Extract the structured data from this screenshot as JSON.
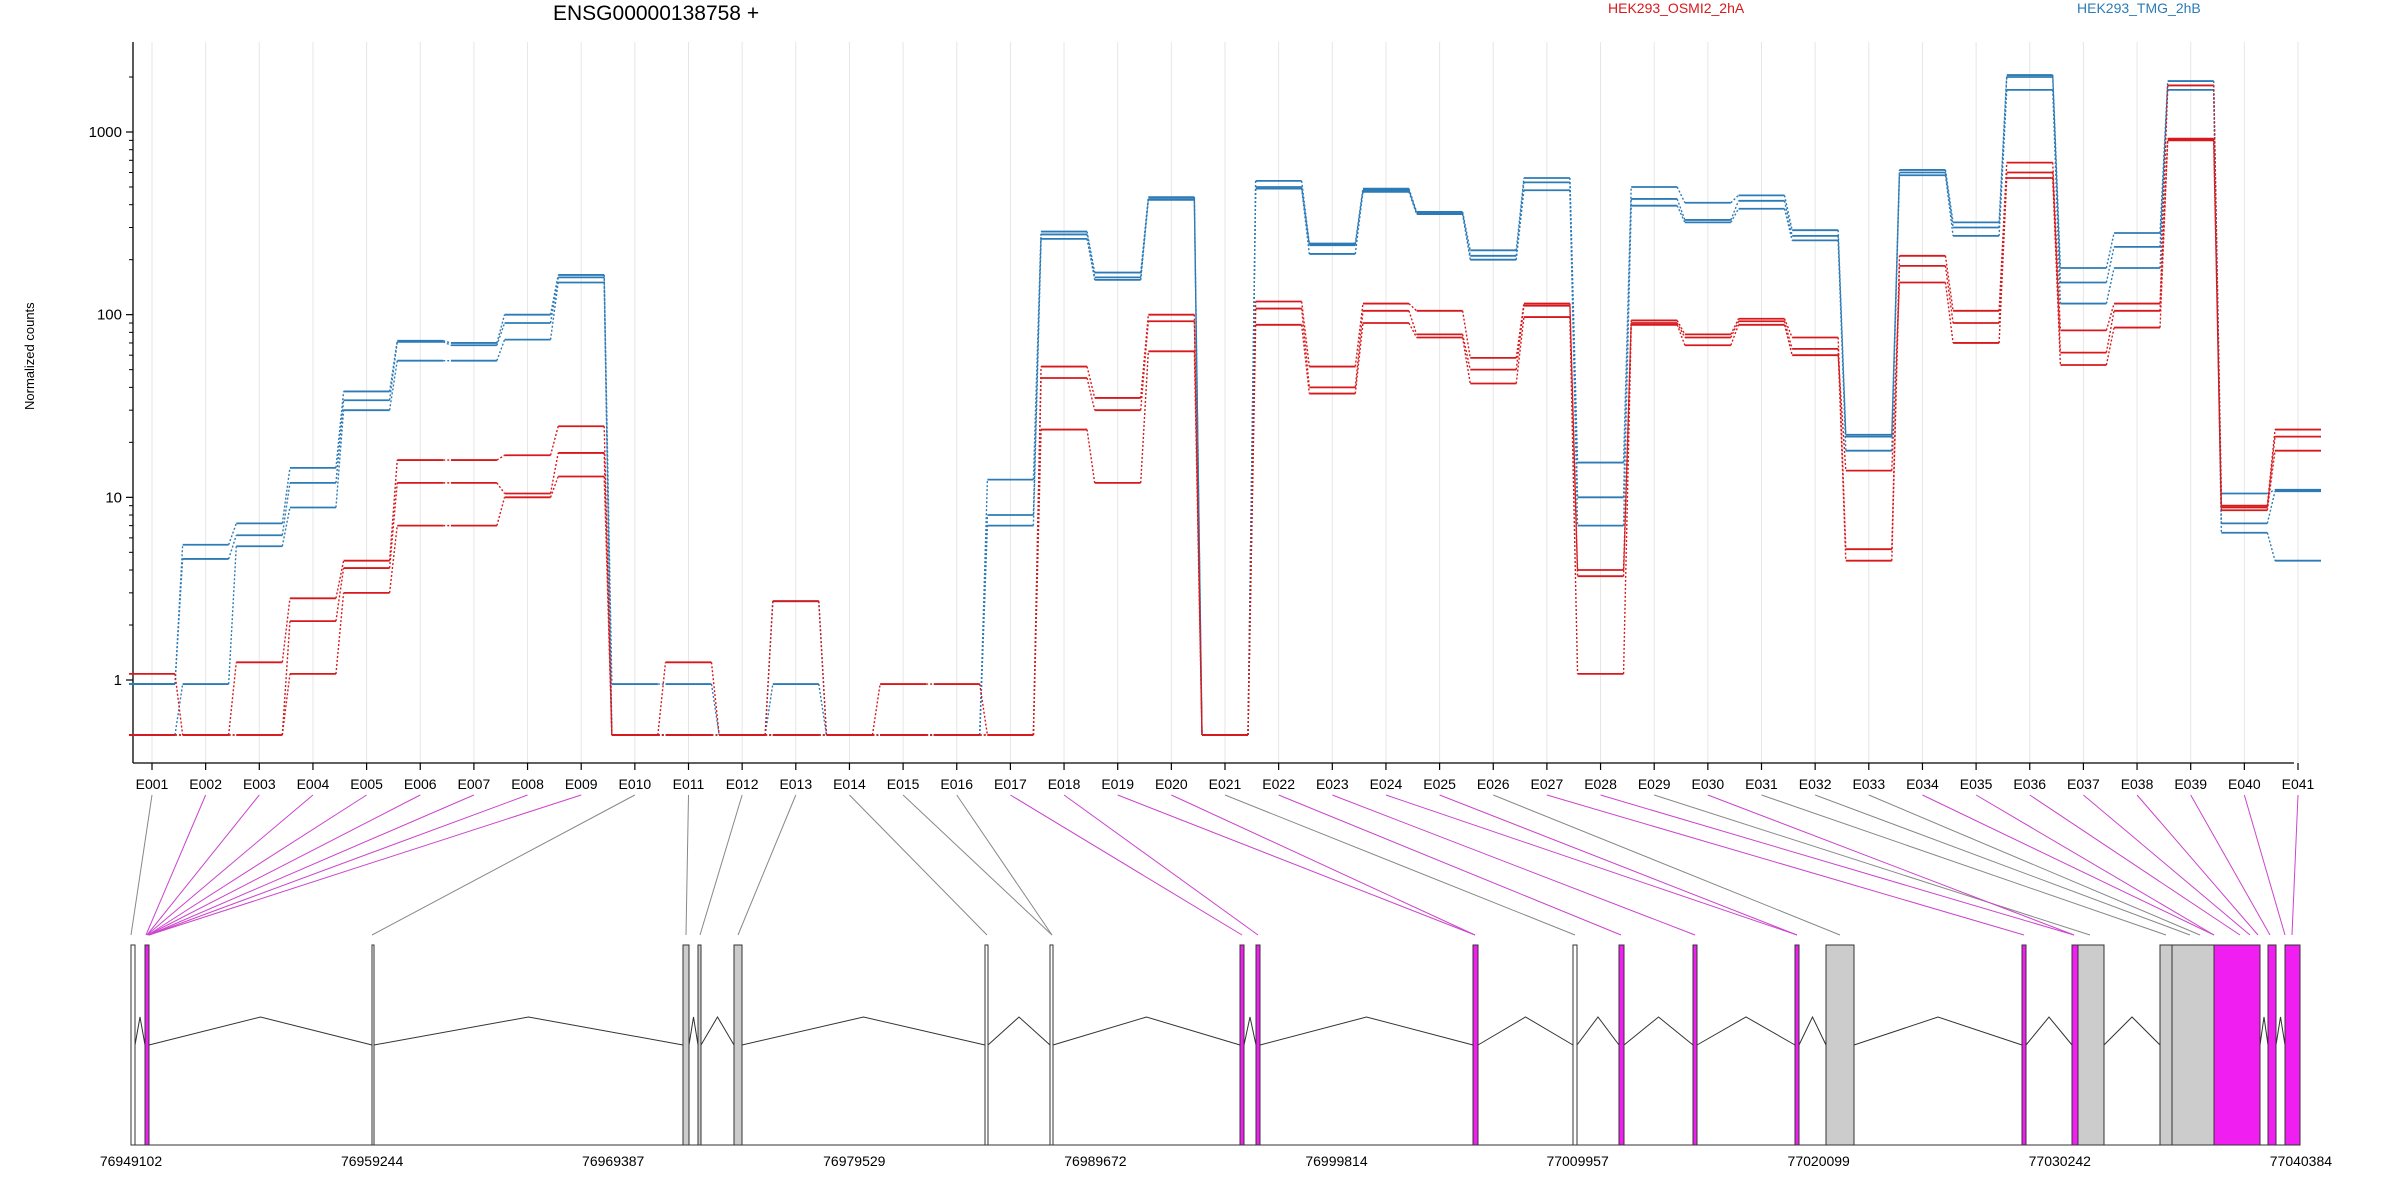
{
  "chart_data": {
    "type": "line",
    "title": "ENSG00000138758 +",
    "ylabel": "Normalized counts",
    "y_scale": "log",
    "ylim": [
      0.5,
      2500
    ],
    "y_ticks": [
      {
        "value": 1,
        "label": "1"
      },
      {
        "value": 10,
        "label": "10"
      },
      {
        "value": 100,
        "label": "100"
      },
      {
        "value": 1000,
        "label": "1000"
      }
    ],
    "categories": [
      "E001",
      "E002",
      "E003",
      "E004",
      "E005",
      "E006",
      "E007",
      "E008",
      "E009",
      "E010",
      "E011",
      "E012",
      "E013",
      "E014",
      "E015",
      "E016",
      "E017",
      "E018",
      "E019",
      "E020",
      "E021",
      "E022",
      "E023",
      "E024",
      "E025",
      "E026",
      "E027",
      "E028",
      "E029",
      "E030",
      "E031",
      "E032",
      "E033",
      "E034",
      "E035",
      "E036",
      "E037",
      "E038",
      "E039",
      "E040",
      "E041"
    ],
    "legend": [
      {
        "name": "HEK293_OSMI2_2hA",
        "color": "#d7191c"
      },
      {
        "name": "HEK293_TMG_2hB",
        "color": "#2c7bb6"
      }
    ],
    "legend_placement": "top-right",
    "series": [
      {
        "group": "HEK293_TMG_2hB",
        "values": [
          0.95,
          5.5,
          7.2,
          14.5,
          38,
          72,
          70,
          100,
          165,
          0.95,
          0.95,
          0.5,
          2.7,
          0.5,
          0.5,
          0.5,
          12.5,
          285,
          170,
          440,
          0.5,
          540,
          245,
          490,
          365,
          225,
          560,
          15.5,
          500,
          410,
          450,
          290,
          22,
          620,
          320,
          2050,
          180,
          280,
          1900,
          10.5,
          11
        ]
      },
      {
        "group": "HEK293_TMG_2hB",
        "values": [
          0.95,
          4.6,
          6.2,
          12,
          34,
          71,
          68,
          90,
          160,
          0.5,
          0.5,
          0.5,
          0.95,
          0.5,
          0.5,
          0.5,
          8,
          275,
          160,
          435,
          0.5,
          500,
          240,
          480,
          360,
          210,
          530,
          10,
          430,
          330,
          420,
          270,
          21.5,
          600,
          300,
          2000,
          150,
          235,
          1800,
          7.2,
          10.8
        ]
      },
      {
        "group": "HEK293_TMG_2hB",
        "values": [
          0.5,
          0.95,
          5.4,
          8.8,
          30,
          56,
          56,
          73,
          150,
          0.5,
          0.5,
          0.5,
          0.5,
          0.5,
          0.5,
          0.5,
          7,
          260,
          155,
          425,
          0.5,
          490,
          215,
          470,
          355,
          200,
          480,
          7,
          395,
          320,
          380,
          255,
          18,
          580,
          270,
          1700,
          115,
          180,
          1700,
          6.4,
          4.5
        ]
      },
      {
        "group": "HEK293_OSMI2_2hA",
        "values": [
          1.08,
          0.5,
          1.25,
          2.8,
          4.5,
          16,
          16,
          17,
          24.5,
          0.5,
          1.25,
          0.5,
          2.7,
          0.5,
          0.95,
          0.95,
          0.5,
          52,
          35,
          100,
          0.5,
          118,
          52,
          115,
          105,
          58,
          115,
          4,
          93,
          78,
          95,
          75,
          5.2,
          210,
          105,
          680,
          82,
          115,
          1800,
          9,
          23.5
        ]
      },
      {
        "group": "HEK293_OSMI2_2hA",
        "values": [
          0.5,
          0.5,
          0.5,
          2.1,
          4.1,
          12,
          12,
          10.5,
          17.5,
          0.5,
          0.5,
          0.5,
          0.5,
          0.5,
          0.5,
          0.5,
          0.5,
          45,
          30,
          92,
          0.5,
          108,
          40,
          105,
          78,
          50,
          112,
          3.7,
          90,
          75,
          92,
          65,
          4.5,
          185,
          90,
          600,
          62,
          105,
          920,
          8.8,
          21.5
        ]
      },
      {
        "group": "HEK293_OSMI2_2hA",
        "values": [
          0.5,
          0.5,
          0.5,
          1.08,
          3,
          7,
          7,
          10,
          13,
          0.5,
          0.5,
          0.5,
          0.5,
          0.5,
          0.5,
          0.5,
          0.5,
          23.5,
          12,
          63,
          0.5,
          88,
          37,
          90,
          75,
          42,
          97,
          1.08,
          88,
          68,
          88,
          60,
          14,
          150,
          70,
          560,
          53,
          85,
          900,
          8.5,
          18
        ]
      }
    ]
  },
  "genomic_axis": {
    "tick_labels": [
      "76949102",
      "76959244",
      "76969387",
      "76979529",
      "76989672",
      "76999814",
      "77009957",
      "77020099",
      "77030242",
      "77040384"
    ]
  },
  "colors": {
    "sample_a": "#d7191c",
    "sample_b": "#2c7bb6",
    "exon_highlight": "#f01ef0",
    "exon_default": "#cccccc",
    "connector_highlight": "#cc44cc",
    "connector_default": "#888888",
    "grid": "#e6e6e6"
  }
}
